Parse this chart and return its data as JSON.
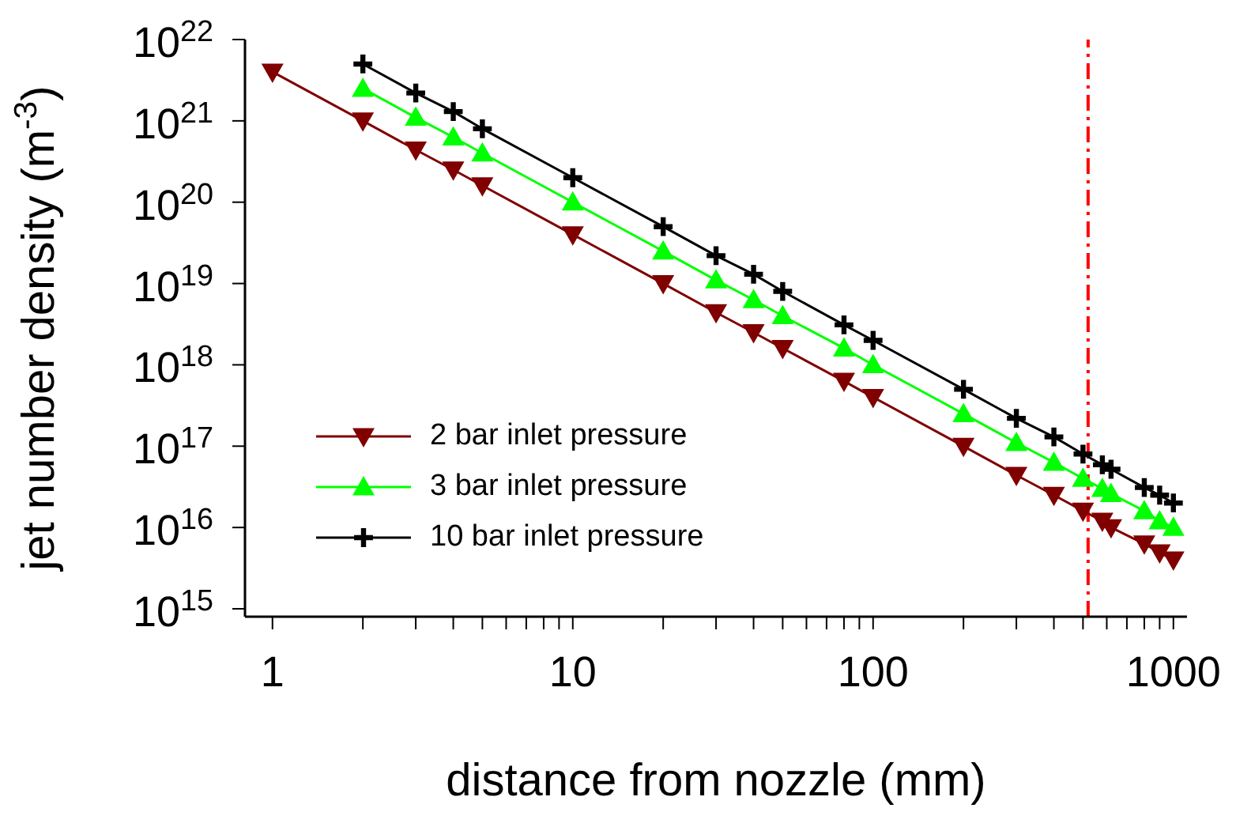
{
  "chart_data": {
    "type": "line",
    "xlabel": "distance from nozzle (mm)",
    "ylabel": "jet number density (m$^{-3}$)",
    "log": "xy",
    "grid": false,
    "legend": "bottom left",
    "xlim": [
      0.81,
      1110
    ],
    "ylim": [
      800000000000000.0,
      1e+22
    ],
    "xticks": [
      1,
      {
        "value": 2,
        "label": null
      },
      {
        "value": 3,
        "label": null
      },
      {
        "value": 4,
        "label": null
      },
      {
        "value": 5,
        "label": null
      },
      {
        "value": 6,
        "label": null
      },
      {
        "value": 7,
        "label": null
      },
      {
        "value": 8,
        "label": null
      },
      {
        "value": 9,
        "label": null
      },
      10,
      {
        "value": 20,
        "label": null
      },
      {
        "value": 30,
        "label": null
      },
      {
        "value": 40,
        "label": null
      },
      {
        "value": 50,
        "label": null
      },
      {
        "value": 60,
        "label": null
      },
      {
        "value": 70,
        "label": null
      },
      {
        "value": 80,
        "label": null
      },
      {
        "value": 90,
        "label": null
      },
      100,
      {
        "value": 200,
        "label": null
      },
      {
        "value": 300,
        "label": null
      },
      {
        "value": 400,
        "label": null
      },
      {
        "value": 500,
        "label": null
      },
      {
        "value": 600,
        "label": null
      },
      {
        "value": 700,
        "label": null
      },
      {
        "value": 800,
        "label": null
      },
      {
        "value": 900,
        "label": null
      },
      1000
    ],
    "yticks": [
      {
        "value": 1000000000000000.0,
        "label": "10$^{15}$"
      },
      {
        "value": 1e+16,
        "label": "10$^{16}$"
      },
      {
        "value": 1e+17,
        "label": "10$^{17}$"
      },
      {
        "value": 1e+18,
        "label": "10$^{18}$"
      },
      {
        "value": 1e+19,
        "label": "10$^{19}$"
      },
      {
        "value": 1e+20,
        "label": "10$^{20}$"
      },
      {
        "value": 1e+21,
        "label": "10$^{21}$"
      },
      {
        "value": 1e+22,
        "label": "10$^{22}$"
      }
    ],
    "ref_lines": [
      {
        "axis": "x",
        "value": 520,
        "color": "#ff0000",
        "line_style": "dashdot"
      }
    ],
    "series": [
      {
        "name": "2 bar inlet pressure",
        "color": "#800000",
        "marker": "triangle-down",
        "x": [
          1,
          2,
          3,
          4,
          5,
          10,
          20,
          30,
          40,
          50,
          80,
          100,
          200,
          300,
          400,
          500,
          580,
          620,
          800,
          900,
          1000
        ],
        "values": [
          4e+21,
          1e+21,
          4.4e+20,
          2.5e+20,
          1.6e+20,
          4e+19,
          1e+19,
          4.4e+18,
          2.5e+18,
          1.6e+18,
          6.3e+17,
          4e+17,
          1e+17,
          4.4e+16,
          2.5e+16,
          1.6e+16,
          1.2e+16,
          1e+16,
          6300000000000000.0,
          4900000000000000.0,
          4000000000000000.0
        ]
      },
      {
        "name": "3 bar inlet pressure",
        "color": "#00ff00",
        "marker": "triangle",
        "x": [
          2,
          3,
          4,
          5,
          10,
          20,
          30,
          40,
          50,
          80,
          100,
          200,
          300,
          400,
          500,
          580,
          620,
          800,
          900,
          1000
        ],
        "values": [
          2.5e+21,
          1.1e+21,
          6.3e+20,
          4e+20,
          1e+20,
          2.5e+19,
          1.1e+19,
          6.3e+18,
          4e+18,
          1.6e+18,
          1e+18,
          2.5e+17,
          1.1e+17,
          6.3e+16,
          4e+16,
          3e+16,
          2.6e+16,
          1.6e+16,
          1.2e+16,
          1e+16
        ]
      },
      {
        "name": "10 bar inlet pressure",
        "color": "#000000",
        "marker": "cross",
        "x": [
          2,
          3,
          4,
          5,
          10,
          20,
          30,
          40,
          50,
          80,
          100,
          200,
          300,
          400,
          500,
          580,
          620,
          800,
          900,
          1000
        ],
        "values": [
          5e+21,
          2.2e+21,
          1.3e+21,
          8e+20,
          2e+20,
          5e+19,
          2.2e+19,
          1.3e+19,
          8e+18,
          3.1e+18,
          2e+18,
          5e+17,
          2.2e+17,
          1.3e+17,
          8e+16,
          5.9e+16,
          5.2e+16,
          3.1e+16,
          2.5e+16,
          2e+16
        ]
      }
    ]
  }
}
